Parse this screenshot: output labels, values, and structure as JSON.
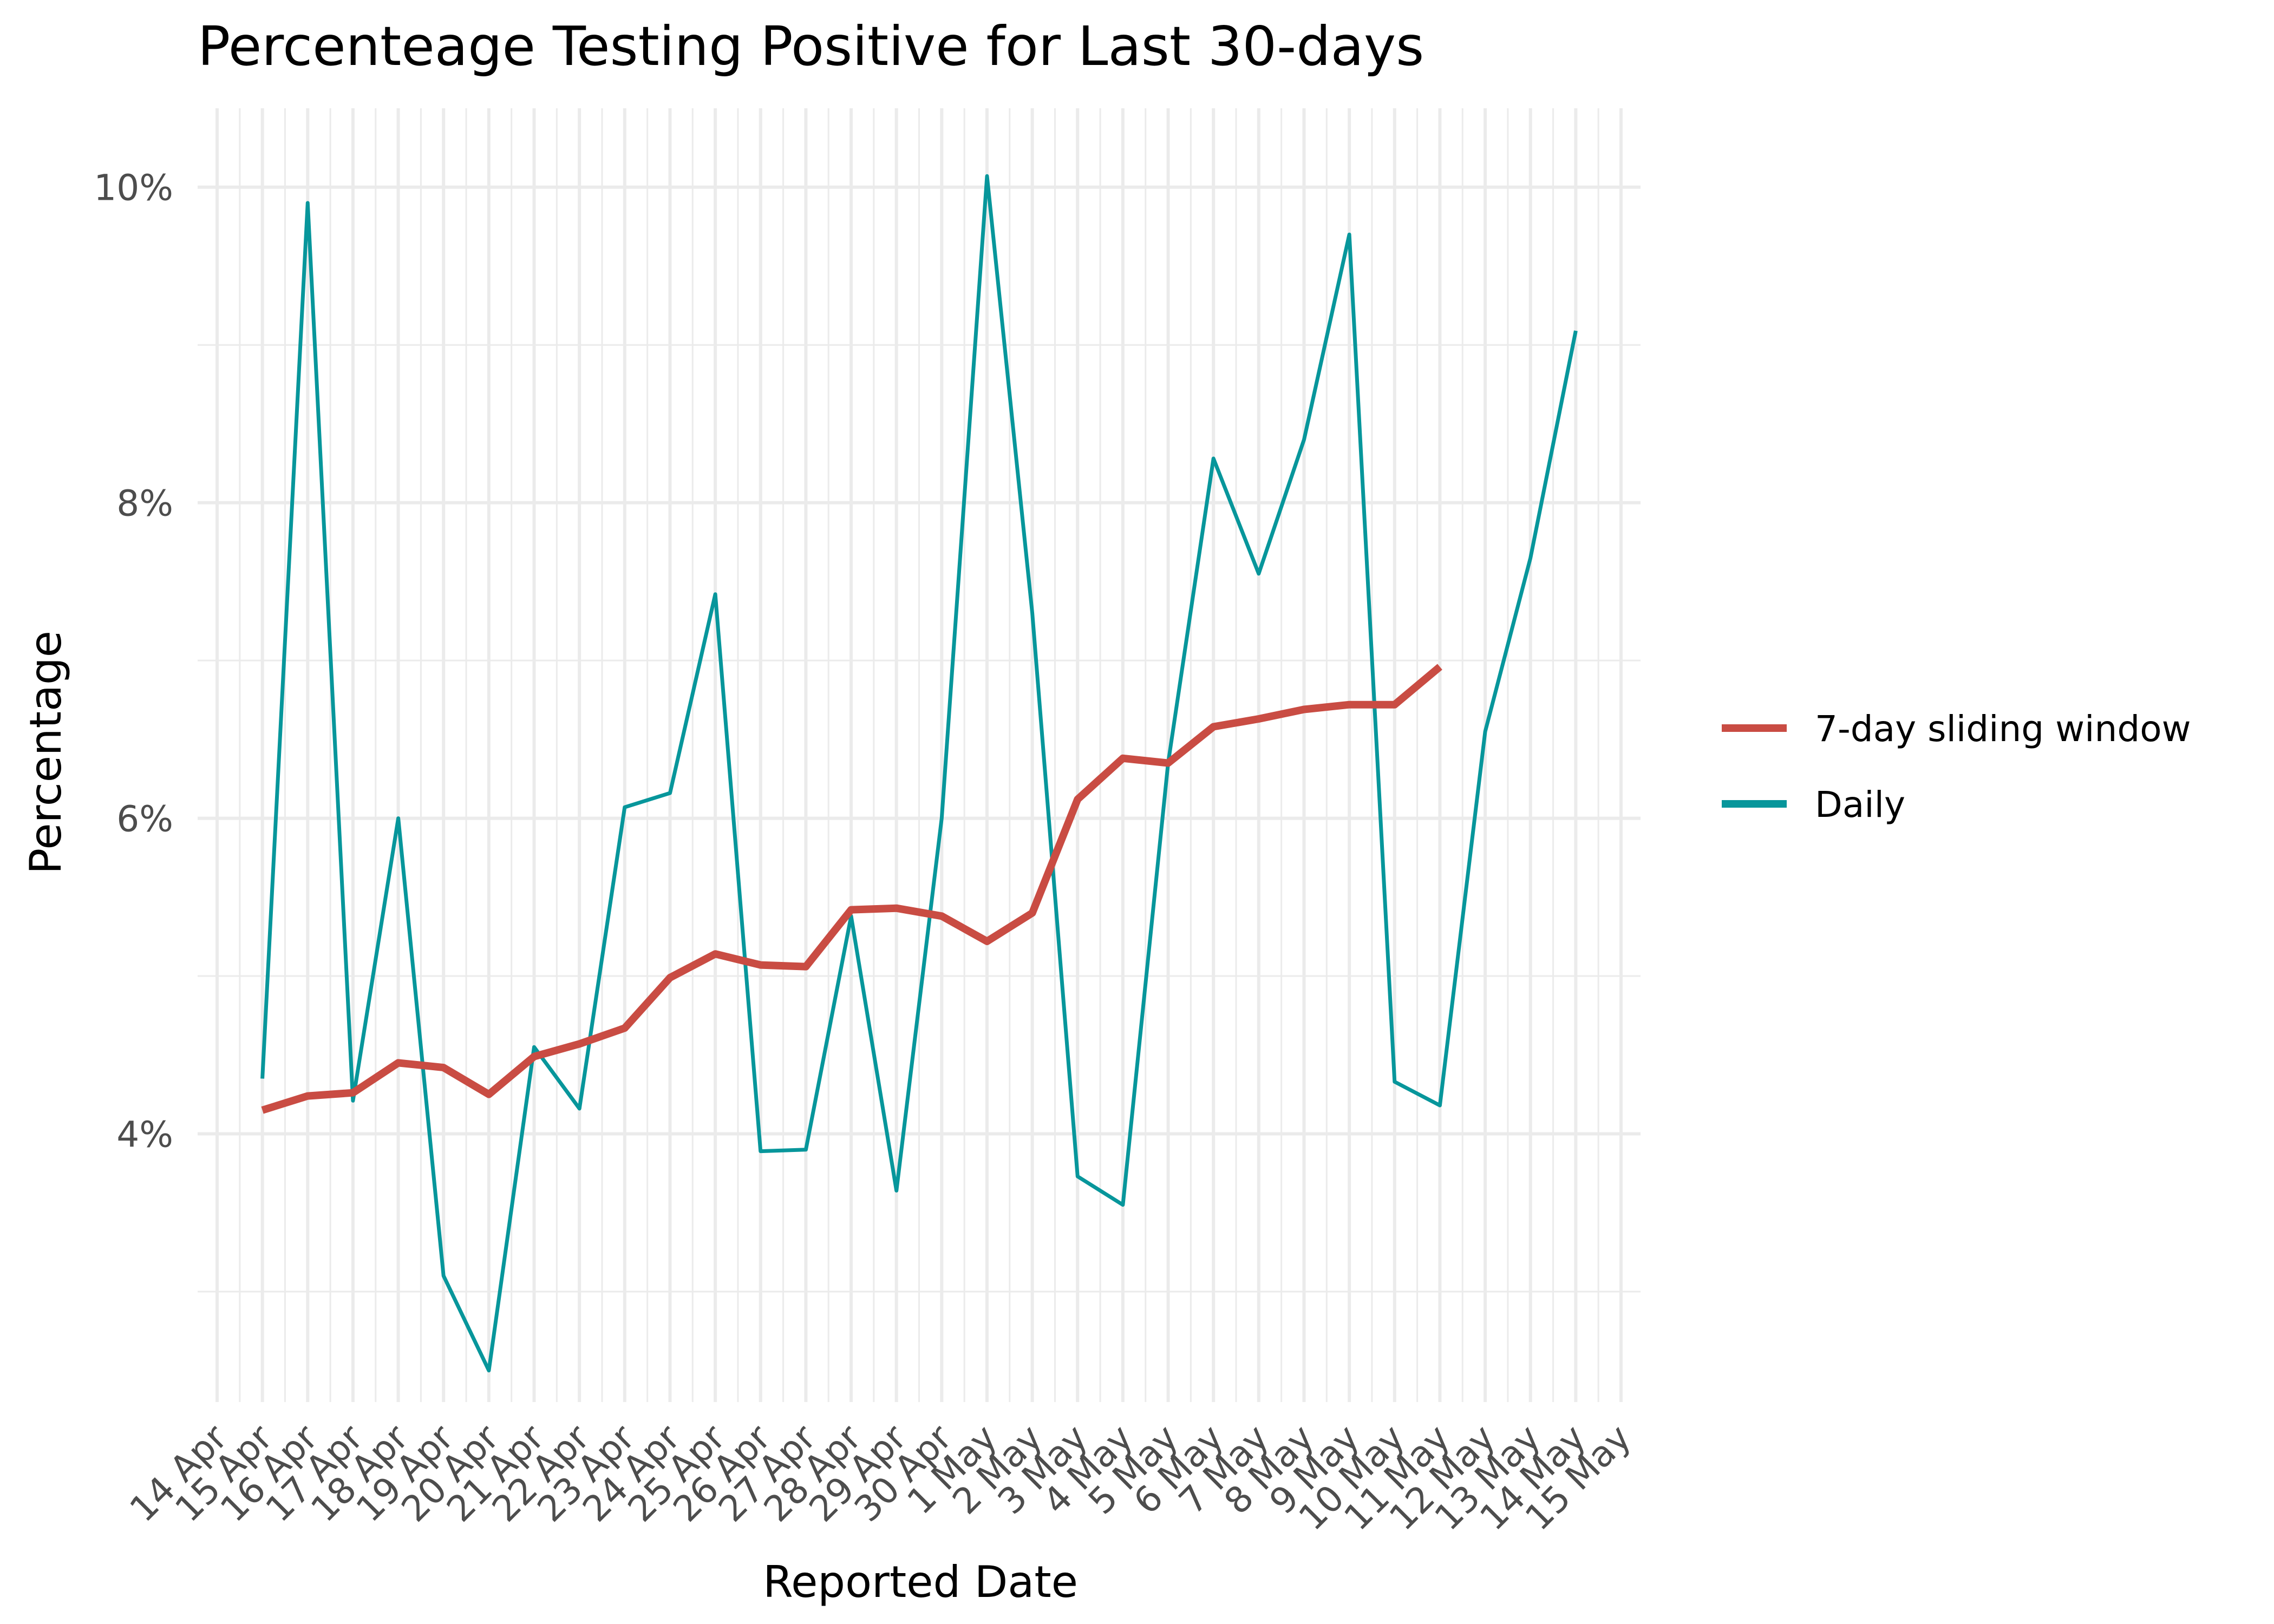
{
  "chart_data": {
    "type": "line",
    "title": "Percenteage Testing Positive for Last 30-days",
    "xlabel": "Reported Date",
    "ylabel": "Percentage",
    "x_ticks": [
      "14 Apr",
      "15 Apr",
      "16 Apr",
      "17 Apr",
      "18 Apr",
      "19 Apr",
      "20 Apr",
      "21 Apr",
      "22 Apr",
      "23 Apr",
      "24 Apr",
      "25 Apr",
      "26 Apr",
      "27 Apr",
      "28 Apr",
      "29 Apr",
      "30 Apr",
      "1 May",
      "2 May",
      "3 May",
      "4 May",
      "5 May",
      "6 May",
      "7 May",
      "8 May",
      "9 May",
      "10 May",
      "11 May",
      "12 May",
      "13 May",
      "14 May",
      "15 May"
    ],
    "y_ticks": [
      {
        "value": 4,
        "label": "4%"
      },
      {
        "value": 6,
        "label": "6%"
      },
      {
        "value": 8,
        "label": "8%"
      },
      {
        "value": 10,
        "label": "10%"
      }
    ],
    "ylim": [
      2.3,
      10.5
    ],
    "grid": true,
    "legend_position": "right",
    "series": [
      {
        "name": "7-day sliding window",
        "color": "#c94c43",
        "x_start_index": 1,
        "values": [
          4.15,
          4.24,
          4.26,
          4.45,
          4.42,
          4.25,
          4.49,
          4.57,
          4.67,
          4.99,
          5.14,
          5.07,
          5.06,
          5.42,
          5.43,
          5.38,
          5.22,
          5.4,
          6.12,
          6.38,
          6.35,
          6.58,
          6.63,
          6.69,
          6.72,
          6.72,
          6.96
        ]
      },
      {
        "name": "Daily",
        "color": "#07969b",
        "x_start_index": 1,
        "values": [
          4.35,
          9.9,
          4.21,
          6.0,
          3.1,
          2.5,
          4.55,
          4.16,
          6.07,
          6.16,
          7.42,
          3.89,
          3.9,
          5.38,
          3.64,
          6.0,
          10.07,
          7.3,
          3.73,
          3.55,
          6.35,
          8.28,
          7.55,
          8.4,
          9.7,
          4.33,
          4.18,
          6.55,
          7.65,
          9.09
        ]
      }
    ]
  }
}
